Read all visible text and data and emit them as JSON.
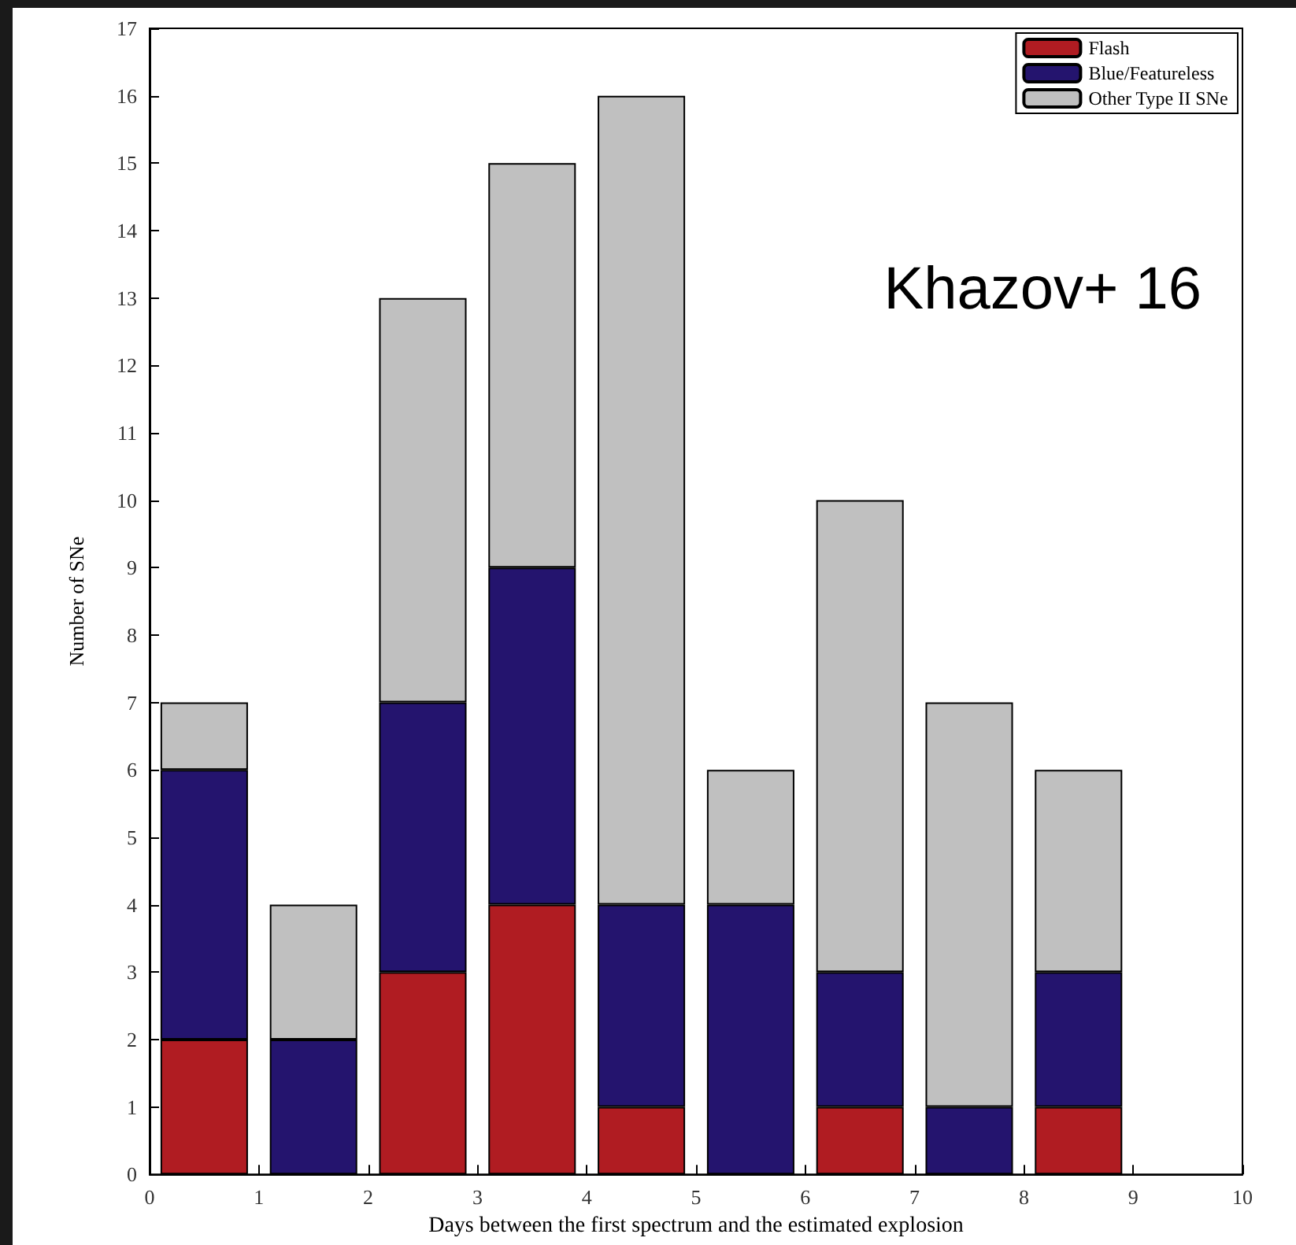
{
  "chart_data": {
    "type": "bar",
    "stacked": true,
    "xlabel": "Days between the first spectrum and the estimated explosion",
    "ylabel": "Number of SNe",
    "x": [
      0.5,
      1.5,
      2.5,
      3.5,
      4.5,
      5.5,
      6.5,
      7.5,
      8.5
    ],
    "series": [
      {
        "name": "Flash",
        "color": "#b01c22",
        "values": [
          2,
          0,
          3,
          4,
          1,
          0,
          1,
          0,
          1
        ]
      },
      {
        "name": "Blue/Featureless",
        "color": "#24146e",
        "values": [
          4,
          2,
          4,
          5,
          3,
          4,
          2,
          1,
          2
        ]
      },
      {
        "name": "Other Type II SNe",
        "color": "#c0c0c0",
        "values": [
          1,
          2,
          6,
          6,
          12,
          2,
          7,
          6,
          3
        ]
      }
    ],
    "xlim": [
      0,
      10
    ],
    "xticks": [
      0,
      1,
      2,
      3,
      4,
      5,
      6,
      7,
      8,
      9,
      10
    ],
    "ylim": [
      0,
      17
    ],
    "yticks": [
      0,
      1,
      2,
      3,
      4,
      5,
      6,
      7,
      8,
      9,
      10,
      11,
      12,
      13,
      14,
      15,
      16,
      17
    ],
    "grid": false,
    "legend": "top right",
    "annotations": [
      "Khazov+ 16"
    ]
  }
}
